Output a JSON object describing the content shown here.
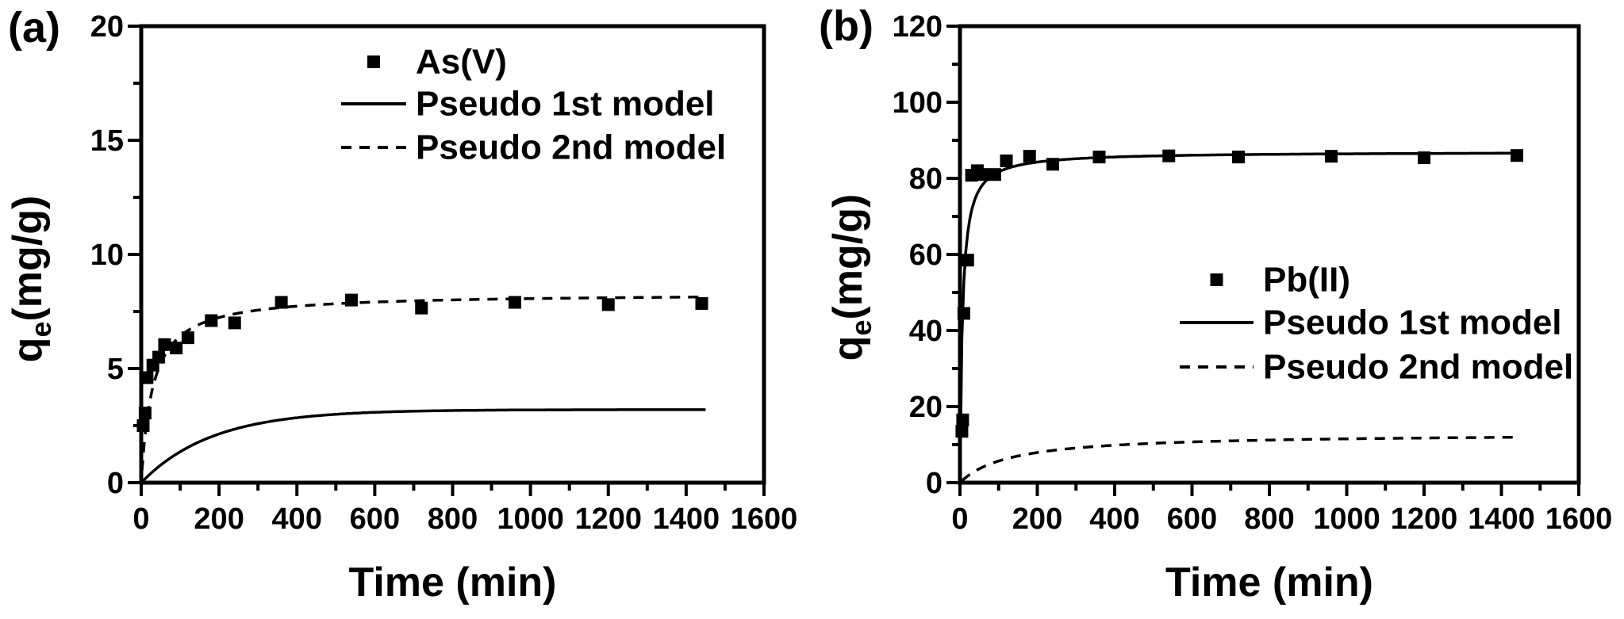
{
  "figure": {
    "background": "#ffffff",
    "ink_color": "#000000"
  },
  "chart_data": [
    {
      "type": "scatter",
      "panel_label": "(a)",
      "xlabel": "Time (min)",
      "ylabel": "qe(mg/g)",
      "ylabel_parts": {
        "base": "q",
        "sub": "e",
        "rest": "(mg/g)"
      },
      "xlim": [
        0,
        1600
      ],
      "ylim": [
        0,
        20
      ],
      "xticks": {
        "major": 200,
        "minor": 100,
        "labels": [
          "0",
          "200",
          "400",
          "600",
          "800",
          "1000",
          "1200",
          "1400",
          "1600"
        ]
      },
      "yticks": {
        "major": 5,
        "minor": 2.5,
        "labels": [
          "0",
          "5",
          "10",
          "15",
          "20"
        ]
      },
      "grid": false,
      "legend_position": "upper-center",
      "series": [
        {
          "name": "As(V)",
          "kind": "scatter",
          "marker": "square",
          "color": "#000000",
          "points": [
            [
              5,
              2.5
            ],
            [
              10,
              3.05
            ],
            [
              15,
              4.6
            ],
            [
              30,
              5.15
            ],
            [
              45,
              5.5
            ],
            [
              60,
              6.05
            ],
            [
              90,
              5.9
            ],
            [
              120,
              6.35
            ],
            [
              180,
              7.1
            ],
            [
              240,
              7.0
            ],
            [
              360,
              7.9
            ],
            [
              540,
              8.0
            ],
            [
              720,
              7.65
            ],
            [
              960,
              7.9
            ],
            [
              1200,
              7.8
            ],
            [
              1440,
              7.85
            ]
          ]
        },
        {
          "name": "Pseudo 1st model",
          "kind": "model",
          "line": "solid",
          "color": "#000000",
          "curve": {
            "form": "exponential",
            "qe": 3.2,
            "k": 0.0055
          },
          "t_range": [
            0,
            1450
          ]
        },
        {
          "name": "Pseudo 2nd model",
          "kind": "model",
          "line": "dashed",
          "color": "#000000",
          "curve": {
            "form": "hyperbolic",
            "qe": 8.3,
            "k": 0.0041
          },
          "t_range": [
            2,
            1455
          ]
        }
      ]
    },
    {
      "type": "scatter",
      "panel_label": "(b)",
      "xlabel": "Time (min)",
      "ylabel": "qe(mg/g)",
      "ylabel_parts": {
        "base": "q",
        "sub": "e",
        "rest": "(mg/g)"
      },
      "xlim": [
        0,
        1600
      ],
      "ylim": [
        0,
        120
      ],
      "xticks": {
        "major": 200,
        "minor": 100,
        "labels": [
          "0",
          "200",
          "400",
          "600",
          "800",
          "1000",
          "1200",
          "1400",
          "1600"
        ]
      },
      "yticks": {
        "major": 20,
        "minor": 10,
        "labels": [
          "0",
          "20",
          "40",
          "60",
          "80",
          "100",
          "120"
        ]
      },
      "grid": false,
      "legend_position": "middle-right",
      "series": [
        {
          "name": "Pb(II)",
          "kind": "scatter",
          "marker": "square",
          "color": "#000000",
          "points": [
            [
              5,
              13.5
            ],
            [
              7,
              16.5
            ],
            [
              10,
              44.5
            ],
            [
              20,
              58.5
            ],
            [
              30,
              80.8
            ],
            [
              45,
              82
            ],
            [
              60,
              81
            ],
            [
              90,
              81
            ],
            [
              120,
              84.6
            ],
            [
              180,
              85.8
            ],
            [
              240,
              83.7
            ],
            [
              360,
              85.6
            ],
            [
              540,
              85.9
            ],
            [
              720,
              85.6
            ],
            [
              960,
              85.8
            ],
            [
              1200,
              85.4
            ],
            [
              1440,
              86
            ]
          ]
        },
        {
          "name": "Pseudo 1st model",
          "kind": "model",
          "line": "solid",
          "color": "#000000",
          "curve": {
            "form": "hyperbolic",
            "qe": 87,
            "k": 0.00177
          },
          "t_range": [
            0,
            1440
          ]
        },
        {
          "name": "Pseudo 2nd model",
          "kind": "model",
          "line": "dashed",
          "color": "#000000",
          "curve": {
            "form": "hyperbolic",
            "qe": 13,
            "k": 0.0006
          },
          "t_range": [
            5,
            1430
          ]
        }
      ]
    }
  ]
}
